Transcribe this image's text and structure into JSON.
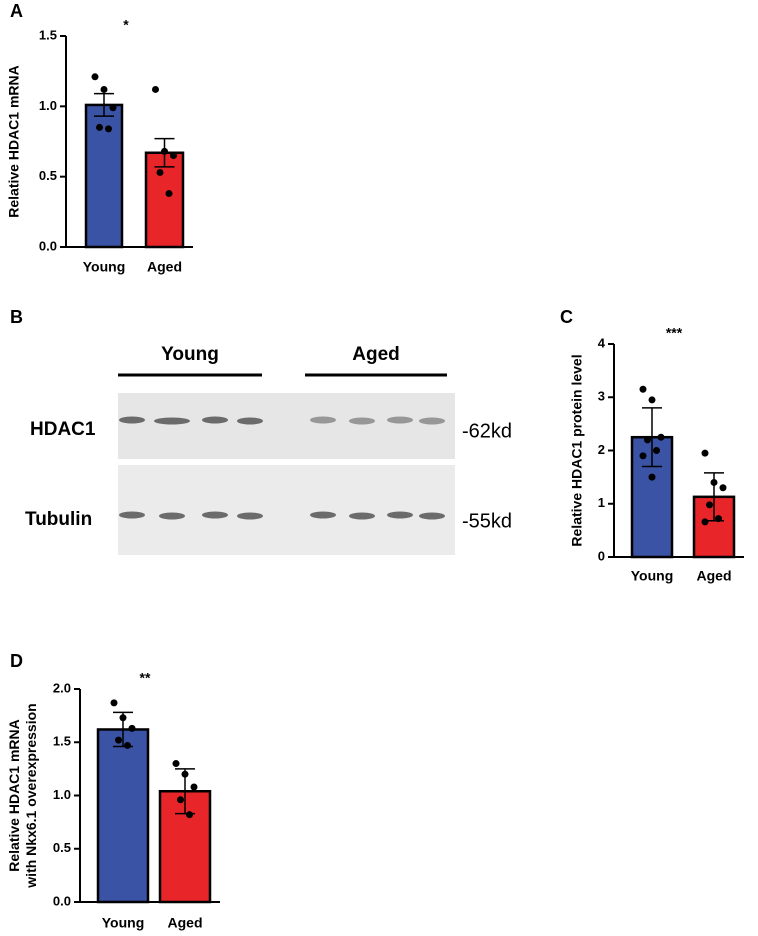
{
  "chart_data": [
    {
      "type": "bar",
      "panel": "A",
      "ylabel": [
        "Relative HDAC1 mRNA"
      ],
      "categories": [
        "Young",
        "Aged"
      ],
      "colors": [
        "#3a53a4",
        "#e8262a"
      ],
      "values": [
        1.01,
        0.67
      ],
      "errors": [
        0.08,
        0.1
      ],
      "points": [
        [
          1.21,
          1.12,
          0.99,
          0.85,
          0.84
        ],
        [
          1.12,
          0.68,
          0.65,
          0.53,
          0.38
        ]
      ],
      "annotation": "*",
      "ylim": [
        0,
        1.5
      ],
      "yticks": [
        {
          "value": 0,
          "label": "0.0"
        },
        0.5,
        {
          "value": 1,
          "label": "1.0"
        },
        1.5
      ]
    },
    {
      "type": "blot",
      "panel": "B",
      "groups": [
        "Young",
        "Aged"
      ],
      "rows": [
        "HDAC1",
        "Tubulin"
      ],
      "sizes": [
        "-62kd",
        "-55kd"
      ]
    },
    {
      "type": "bar",
      "panel": "C",
      "ylabel": [
        "Relative HDAC1 protein level"
      ],
      "categories": [
        "Young",
        "Aged"
      ],
      "colors": [
        "#3a53a4",
        "#e8262a"
      ],
      "values": [
        2.25,
        1.13
      ],
      "errors": [
        0.55,
        0.45
      ],
      "points": [
        [
          3.15,
          2.95,
          2.25,
          2.2,
          2.0,
          1.9,
          1.5
        ],
        [
          1.95,
          1.4,
          1.3,
          0.98,
          0.72,
          0.66
        ]
      ],
      "annotation": "***",
      "ylim": [
        0,
        4
      ],
      "yticks": [
        0,
        1,
        2,
        3,
        4
      ]
    },
    {
      "type": "bar",
      "panel": "D",
      "ylabel": [
        "Relative HDAC1 mRNA",
        "with Nkx6.1 overexpression"
      ],
      "categories": [
        "Young",
        "Aged"
      ],
      "colors": [
        "#3a53a4",
        "#e8262a"
      ],
      "values": [
        1.62,
        1.04
      ],
      "errors": [
        0.16,
        0.21
      ],
      "points": [
        [
          1.87,
          1.73,
          1.63,
          1.52,
          1.47
        ],
        [
          1.3,
          1.2,
          1.08,
          0.96,
          0.82
        ]
      ],
      "annotation": "**",
      "ylim": [
        0,
        2
      ],
      "yticks": [
        {
          "value": 0,
          "label": "0.0"
        },
        0.5,
        {
          "value": 1,
          "label": "1.0"
        },
        1.5,
        {
          "value": 2,
          "label": "2.0"
        }
      ]
    }
  ]
}
